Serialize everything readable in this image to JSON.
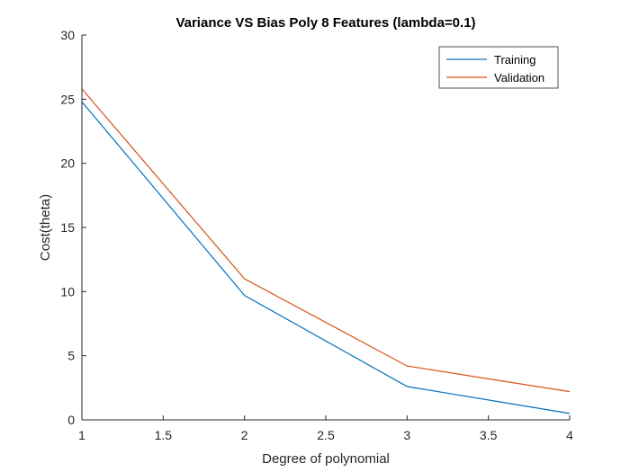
{
  "chart_data": {
    "type": "line",
    "title": "Variance VS Bias Poly 8 Features (lambda=0.1)",
    "xlabel": "Degree of polynomial",
    "ylabel": "Cost(theta)",
    "xlim": [
      1,
      4
    ],
    "ylim": [
      0,
      30
    ],
    "x_ticks": [
      1,
      1.5,
      2,
      2.5,
      3,
      3.5,
      4
    ],
    "y_ticks": [
      0,
      5,
      10,
      15,
      20,
      25,
      30
    ],
    "x_tick_labels": [
      "1",
      "1.5",
      "2",
      "2.5",
      "3",
      "3.5",
      "4"
    ],
    "y_tick_labels": [
      "0",
      "5",
      "10",
      "15",
      "20",
      "25",
      "30"
    ],
    "grid": false,
    "legend_position": "top-right",
    "x": [
      1,
      2,
      3,
      4
    ],
    "series": [
      {
        "name": "Training",
        "color": "#0072BD",
        "values": [
          24.8,
          9.7,
          2.6,
          0.5
        ]
      },
      {
        "name": "Validation",
        "color": "#D95319",
        "values": [
          25.8,
          11.0,
          4.2,
          2.2
        ]
      }
    ]
  }
}
